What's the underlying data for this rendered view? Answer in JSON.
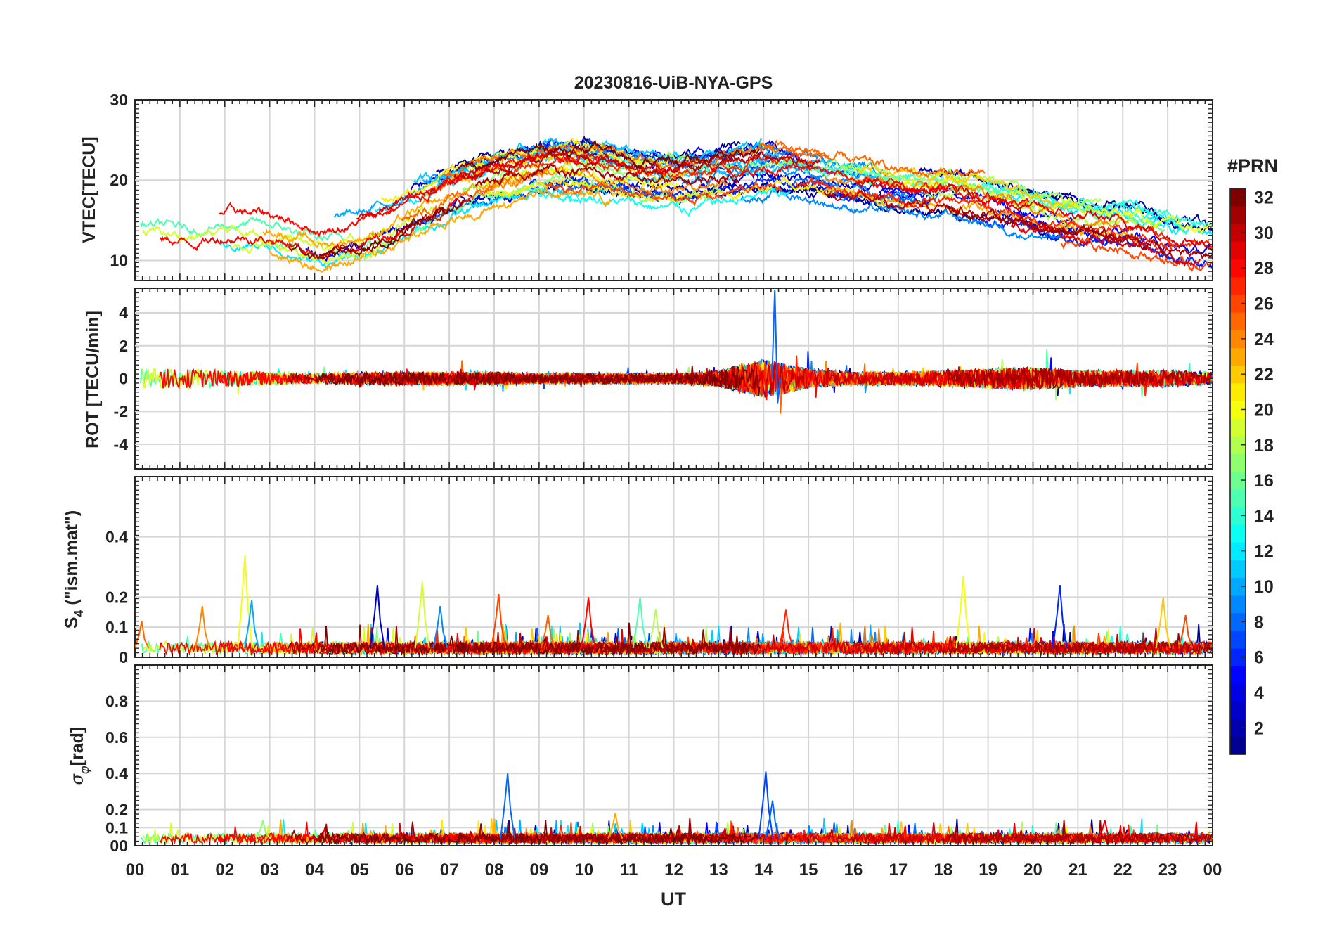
{
  "chart_data": {
    "type": "line",
    "title": "20230816-UiB-NYA-GPS",
    "xlabel": "UT",
    "x_tick_labels": [
      "00",
      "01",
      "02",
      "03",
      "04",
      "05",
      "06",
      "07",
      "08",
      "09",
      "10",
      "11",
      "12",
      "13",
      "14",
      "15",
      "16",
      "17",
      "18",
      "19",
      "20",
      "21",
      "22",
      "23",
      "00"
    ],
    "xlim": [
      0,
      24
    ],
    "colorbar": {
      "title": "#PRN",
      "ticks": [
        "2",
        "4",
        "6",
        "8",
        "10",
        "12",
        "14",
        "16",
        "18",
        "20",
        "22",
        "24",
        "26",
        "28",
        "30",
        "32"
      ],
      "range": [
        1,
        32
      ],
      "colormap": [
        "#00008f",
        "#0000ff",
        "#0080ff",
        "#00ffff",
        "#80ff80",
        "#ffff00",
        "#ff8000",
        "#ff0000",
        "#800000"
      ]
    },
    "panels": [
      {
        "id": "vtec",
        "ylabel": "VTEC[TECU]",
        "ylim": [
          7.5,
          30
        ],
        "y_ticks": [
          10,
          20,
          30
        ],
        "y_tick_labels": [
          "10",
          "20",
          "30"
        ],
        "series_summary": {
          "baseline_hourly": [
            14.5,
            13.5,
            14.5,
            14,
            12,
            13.5,
            16,
            18.5,
            20,
            21.5,
            21,
            20,
            19.5,
            20.5,
            21.5,
            20.5,
            19.5,
            18.5,
            18.5,
            17.5,
            16,
            15,
            14.5,
            12.5,
            12
          ],
          "jitter": 2.0
        }
      },
      {
        "id": "rot",
        "ylabel": "ROT [TECU/min]",
        "ylim": [
          -5.5,
          5.5
        ],
        "y_ticks": [
          -4,
          -2,
          0,
          2,
          4
        ],
        "y_tick_labels": [
          "-4",
          "-2",
          "0",
          "2",
          "4"
        ],
        "series_summary": {
          "amplitude_hourly": [
            0.6,
            0.6,
            0.5,
            0.4,
            0.3,
            0.4,
            0.4,
            0.4,
            0.4,
            0.3,
            0.3,
            0.3,
            0.3,
            0.5,
            1.2,
            0.6,
            0.4,
            0.4,
            0.5,
            0.6,
            0.7,
            0.5,
            0.5,
            0.5,
            0.4
          ],
          "peak_value": 5.4,
          "peak_time": 14.25
        }
      },
      {
        "id": "s4",
        "ylabel": "S4 (\"ism.mat\")",
        "ylabel_main": "S",
        "ylabel_sub": "4",
        "ylabel_rest": " (\"ism.mat\")",
        "ylim": [
          0,
          0.6
        ],
        "y_ticks": [
          0,
          0.1,
          0.2,
          0.4
        ],
        "y_tick_labels": [
          "0",
          "0.1",
          "0.2",
          "0.4"
        ],
        "series_summary": {
          "baseline": 0.03,
          "peaks": [
            [
              0.15,
              0.12
            ],
            [
              1.5,
              0.17
            ],
            [
              2.45,
              0.34
            ],
            [
              2.6,
              0.19
            ],
            [
              5.4,
              0.24
            ],
            [
              6.4,
              0.25
            ],
            [
              6.8,
              0.17
            ],
            [
              8.1,
              0.21
            ],
            [
              9.2,
              0.14
            ],
            [
              10.1,
              0.2
            ],
            [
              11.25,
              0.2
            ],
            [
              11.6,
              0.16
            ],
            [
              14.5,
              0.16
            ],
            [
              18.45,
              0.27
            ],
            [
              20.6,
              0.24
            ],
            [
              22.9,
              0.2
            ],
            [
              23.4,
              0.14
            ]
          ]
        }
      },
      {
        "id": "sigma",
        "ylabel": "σφ[rad]",
        "ylabel_main": "σ",
        "ylabel_sub": "φ",
        "ylabel_rest": "[rad]",
        "ylim": [
          0,
          1.0
        ],
        "y_ticks": [
          0,
          0.1,
          0.2,
          0.4,
          0.6,
          0.8
        ],
        "y_tick_labels": [
          "00",
          "0.1",
          "0.2",
          "0.4",
          "0.6",
          "0.8"
        ],
        "series_summary": {
          "baseline": 0.04,
          "peaks": [
            [
              8.3,
              0.4
            ],
            [
              14.05,
              0.41
            ],
            [
              14.2,
              0.25
            ],
            [
              10.7,
              0.18
            ],
            [
              2.85,
              0.14
            ],
            [
              21.6,
              0.14
            ]
          ]
        }
      }
    ]
  }
}
